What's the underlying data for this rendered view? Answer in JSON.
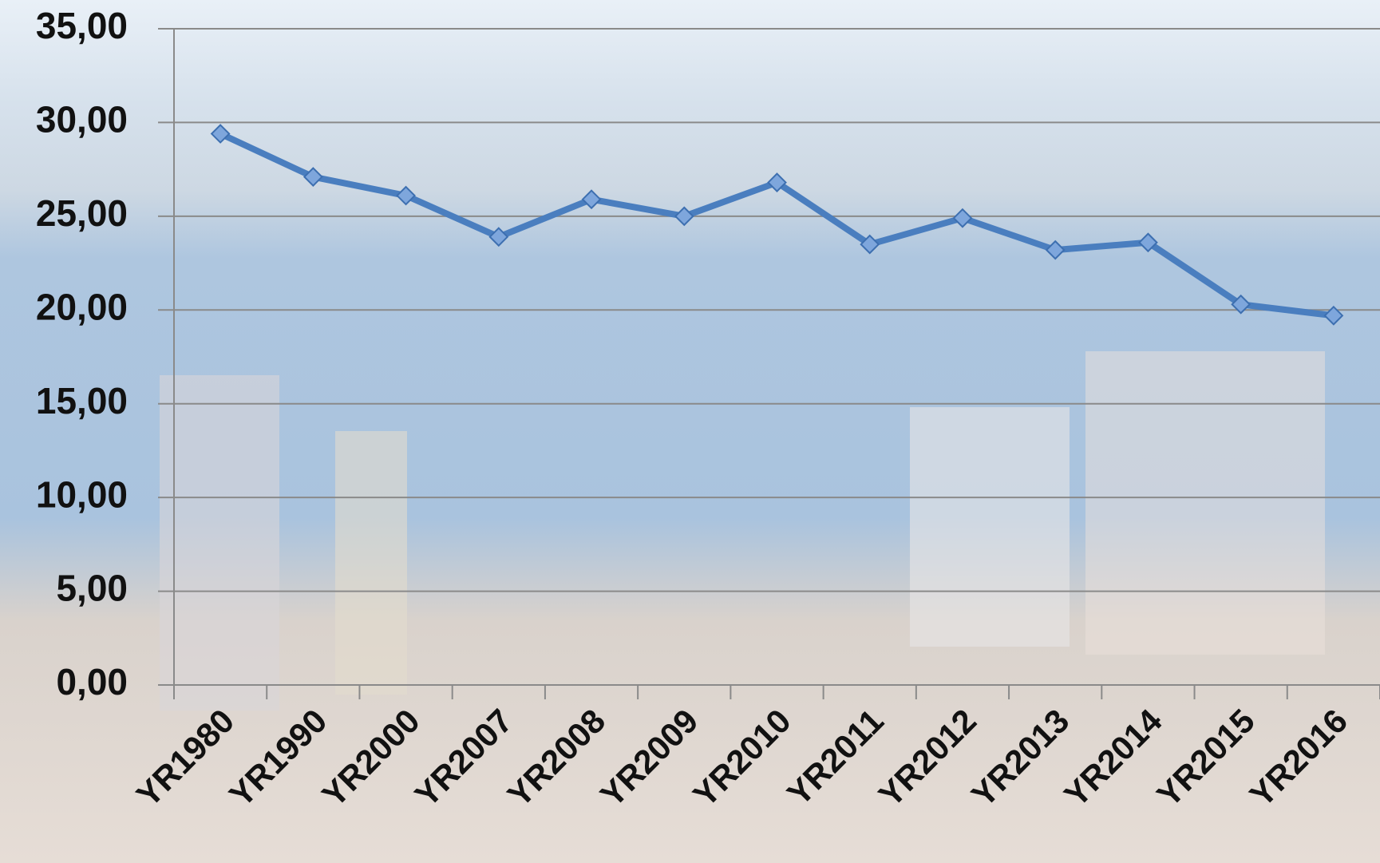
{
  "chart_data": {
    "type": "line",
    "categories": [
      "YR1980",
      "YR1990",
      "YR2000",
      "YR2007",
      "YR2008",
      "YR2009",
      "YR2010",
      "YR2011",
      "YR2012",
      "YR2013",
      "YR2014",
      "YR2015",
      "YR2016"
    ],
    "values": [
      29.4,
      27.1,
      26.1,
      23.9,
      25.9,
      25.0,
      26.8,
      23.5,
      24.9,
      23.2,
      23.6,
      20.3,
      19.7
    ],
    "color": "#4a7ebf",
    "ylim": [
      0,
      35
    ],
    "yticks": [
      {
        "value": 0,
        "label": "0,00"
      },
      {
        "value": 5,
        "label": "5,00"
      },
      {
        "value": 10,
        "label": "10,00"
      },
      {
        "value": 15,
        "label": "15,00"
      },
      {
        "value": 20,
        "label": "20,00"
      },
      {
        "value": 25,
        "label": "25,00"
      },
      {
        "value": 30,
        "label": "30,00"
      },
      {
        "value": 35,
        "label": "35,00"
      }
    ],
    "grid": true
  }
}
